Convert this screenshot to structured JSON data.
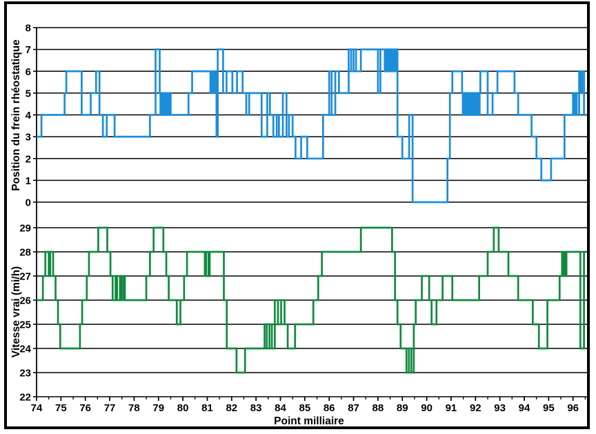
{
  "x_axis": {
    "label": "Point milliaire",
    "major_ticks": [
      74,
      75,
      76,
      77,
      78,
      79,
      80,
      81,
      82,
      83,
      84,
      85,
      86,
      87,
      88,
      89,
      90,
      91,
      92,
      93,
      94,
      95,
      96
    ],
    "minor_tick_step": 0.5,
    "xlim": [
      74,
      96.78
    ]
  },
  "chart_data": [
    {
      "type": "line",
      "subtype": "step",
      "name": "Position du frein rhéostatique",
      "ylabel": "Position du frein rhéostatique",
      "color": "#1c8dd9",
      "ylim": [
        0,
        8
      ],
      "yticks": [
        8,
        7,
        6,
        5,
        4,
        3,
        2,
        1,
        0
      ],
      "grid": true,
      "legend": "none",
      "segments_format": "[mile_start, mile_end, level] or [mile_start, mile_end, low, high] = rapid oscillation block",
      "segments": [
        [
          74.0,
          74.2,
          3
        ],
        [
          74.2,
          75.15,
          4
        ],
        [
          75.15,
          75.22,
          5
        ],
        [
          75.22,
          75.85,
          6
        ],
        [
          75.85,
          76.22,
          4
        ],
        [
          76.22,
          76.44,
          5
        ],
        [
          76.44,
          76.58,
          6
        ],
        [
          76.58,
          76.72,
          4
        ],
        [
          76.72,
          76.88,
          3
        ],
        [
          76.88,
          77.2,
          4
        ],
        [
          77.2,
          78.65,
          3
        ],
        [
          78.65,
          78.88,
          4
        ],
        [
          78.88,
          79.05,
          7
        ],
        [
          79.05,
          79.53,
          4,
          5
        ],
        [
          79.53,
          80.23,
          4
        ],
        [
          80.23,
          80.38,
          5
        ],
        [
          80.38,
          81.1,
          6
        ],
        [
          81.1,
          81.32,
          5,
          6
        ],
        [
          81.32,
          81.38,
          6
        ],
        [
          81.38,
          81.43,
          3
        ],
        [
          81.43,
          81.65,
          7
        ],
        [
          81.65,
          81.79,
          5
        ],
        [
          81.79,
          82.03,
          6
        ],
        [
          82.03,
          82.22,
          5
        ],
        [
          82.22,
          82.45,
          6
        ],
        [
          82.45,
          82.6,
          5
        ],
        [
          82.6,
          82.72,
          4
        ],
        [
          82.72,
          83.23,
          5
        ],
        [
          83.23,
          83.46,
          3
        ],
        [
          83.46,
          83.57,
          5
        ],
        [
          83.57,
          83.71,
          4
        ],
        [
          83.71,
          83.85,
          3
        ],
        [
          83.85,
          83.94,
          4
        ],
        [
          83.94,
          84.1,
          3
        ],
        [
          84.1,
          84.25,
          5
        ],
        [
          84.25,
          84.35,
          3
        ],
        [
          84.35,
          84.5,
          4
        ],
        [
          84.5,
          84.62,
          3
        ],
        [
          84.62,
          84.85,
          2
        ],
        [
          84.85,
          85.1,
          3
        ],
        [
          85.1,
          85.75,
          2
        ],
        [
          85.75,
          86.0,
          4
        ],
        [
          86.0,
          86.1,
          6
        ],
        [
          86.1,
          86.25,
          4
        ],
        [
          86.25,
          86.4,
          6
        ],
        [
          86.4,
          86.8,
          5
        ],
        [
          86.8,
          86.9,
          7
        ],
        [
          86.9,
          87.0,
          6
        ],
        [
          87.0,
          87.1,
          7
        ],
        [
          87.1,
          87.3,
          6
        ],
        [
          87.3,
          88.0,
          7
        ],
        [
          88.0,
          88.1,
          5
        ],
        [
          88.1,
          88.25,
          7
        ],
        [
          88.25,
          88.8,
          6,
          7
        ],
        [
          88.8,
          89.0,
          3
        ],
        [
          89.0,
          89.28,
          2
        ],
        [
          89.28,
          89.42,
          4
        ],
        [
          89.42,
          90.85,
          0
        ],
        [
          90.85,
          90.95,
          2
        ],
        [
          90.95,
          91.05,
          5
        ],
        [
          91.05,
          91.45,
          6
        ],
        [
          91.45,
          92.2,
          4,
          5
        ],
        [
          92.2,
          92.5,
          6
        ],
        [
          92.5,
          92.7,
          4
        ],
        [
          92.7,
          92.9,
          5
        ],
        [
          92.9,
          93.6,
          6
        ],
        [
          93.6,
          93.75,
          5
        ],
        [
          93.75,
          94.3,
          4
        ],
        [
          94.3,
          94.5,
          3
        ],
        [
          94.5,
          94.7,
          2
        ],
        [
          94.7,
          95.1,
          1
        ],
        [
          95.1,
          95.65,
          2
        ],
        [
          95.65,
          96.0,
          4
        ],
        [
          96.0,
          96.05,
          5
        ],
        [
          96.05,
          96.1,
          4
        ],
        [
          96.1,
          96.15,
          5
        ],
        [
          96.15,
          96.25,
          4
        ],
        [
          96.25,
          96.32,
          6
        ],
        [
          96.32,
          96.37,
          5
        ],
        [
          96.37,
          96.45,
          6
        ],
        [
          96.45,
          96.75,
          4
        ]
      ]
    },
    {
      "type": "line",
      "subtype": "step",
      "name": "Vitesse vrai (mi/h)",
      "ylabel": "Vitesse vrai (mi/h)",
      "color": "#108a3e",
      "ylim": [
        22,
        29
      ],
      "yticks": [
        29,
        28,
        27,
        26,
        25,
        24,
        23,
        22
      ],
      "grid": true,
      "legend": "none",
      "segments_format": "[mile_start, mile_end, mph] or [mile_start, mile_end, low, high] = rapid oscillation block",
      "segments": [
        [
          74.0,
          74.26,
          26
        ],
        [
          74.26,
          74.36,
          27
        ],
        [
          74.36,
          74.5,
          28
        ],
        [
          74.5,
          74.56,
          27
        ],
        [
          74.56,
          74.68,
          28
        ],
        [
          74.68,
          74.78,
          27
        ],
        [
          74.78,
          74.88,
          26
        ],
        [
          74.88,
          74.97,
          25
        ],
        [
          74.97,
          75.78,
          24
        ],
        [
          75.78,
          75.87,
          25
        ],
        [
          75.87,
          76.06,
          26
        ],
        [
          76.06,
          76.15,
          27
        ],
        [
          76.15,
          76.53,
          28
        ],
        [
          76.53,
          76.9,
          29
        ],
        [
          76.9,
          77.03,
          28
        ],
        [
          77.03,
          77.12,
          27
        ],
        [
          77.12,
          77.24,
          26
        ],
        [
          77.24,
          77.3,
          27
        ],
        [
          77.3,
          77.42,
          26
        ],
        [
          77.42,
          77.48,
          27
        ],
        [
          77.48,
          77.56,
          26
        ],
        [
          77.56,
          77.62,
          27
        ],
        [
          77.62,
          78.5,
          26
        ],
        [
          78.5,
          78.65,
          27
        ],
        [
          78.65,
          78.8,
          28
        ],
        [
          78.8,
          79.2,
          29
        ],
        [
          79.2,
          79.32,
          28
        ],
        [
          79.32,
          79.42,
          27
        ],
        [
          79.42,
          79.75,
          26
        ],
        [
          79.75,
          79.9,
          25
        ],
        [
          79.9,
          80.05,
          26
        ],
        [
          80.05,
          80.17,
          27
        ],
        [
          80.17,
          80.9,
          28
        ],
        [
          80.9,
          80.95,
          27
        ],
        [
          80.95,
          81.05,
          28
        ],
        [
          81.05,
          81.1,
          27
        ],
        [
          81.1,
          81.68,
          28
        ],
        [
          81.68,
          81.8,
          26
        ],
        [
          81.8,
          82.2,
          24
        ],
        [
          82.2,
          82.55,
          23
        ],
        [
          82.55,
          83.35,
          24
        ],
        [
          83.35,
          83.44,
          25
        ],
        [
          83.44,
          83.55,
          24
        ],
        [
          83.55,
          83.65,
          25
        ],
        [
          83.65,
          83.77,
          24
        ],
        [
          83.77,
          83.9,
          26
        ],
        [
          83.9,
          84.03,
          25
        ],
        [
          84.03,
          84.17,
          26
        ],
        [
          84.17,
          84.3,
          25
        ],
        [
          84.3,
          84.6,
          24
        ],
        [
          84.6,
          85.35,
          25
        ],
        [
          85.35,
          85.55,
          26
        ],
        [
          85.55,
          85.7,
          27
        ],
        [
          85.7,
          87.3,
          28
        ],
        [
          87.3,
          88.58,
          29
        ],
        [
          88.58,
          88.7,
          28
        ],
        [
          88.7,
          88.8,
          26
        ],
        [
          88.8,
          88.93,
          25
        ],
        [
          88.93,
          89.17,
          24
        ],
        [
          89.17,
          89.27,
          23
        ],
        [
          89.27,
          89.37,
          24
        ],
        [
          89.37,
          89.47,
          23
        ],
        [
          89.47,
          89.55,
          25
        ],
        [
          89.55,
          89.8,
          26
        ],
        [
          89.8,
          90.1,
          27
        ],
        [
          90.1,
          90.2,
          26
        ],
        [
          90.2,
          90.4,
          25
        ],
        [
          90.4,
          90.65,
          26
        ],
        [
          90.65,
          91.05,
          27
        ],
        [
          91.05,
          92.15,
          26
        ],
        [
          92.15,
          92.5,
          27
        ],
        [
          92.5,
          92.75,
          28
        ],
        [
          92.75,
          92.95,
          29
        ],
        [
          92.95,
          93.35,
          28
        ],
        [
          93.35,
          93.75,
          27
        ],
        [
          93.75,
          94.35,
          26
        ],
        [
          94.35,
          94.6,
          25
        ],
        [
          94.6,
          94.95,
          24
        ],
        [
          94.95,
          95.45,
          26
        ],
        [
          95.45,
          95.55,
          27
        ],
        [
          95.55,
          95.75,
          27,
          28
        ],
        [
          95.75,
          96.3,
          28
        ],
        [
          96.3,
          96.45,
          24
        ],
        [
          96.45,
          96.75,
          28
        ]
      ]
    }
  ]
}
